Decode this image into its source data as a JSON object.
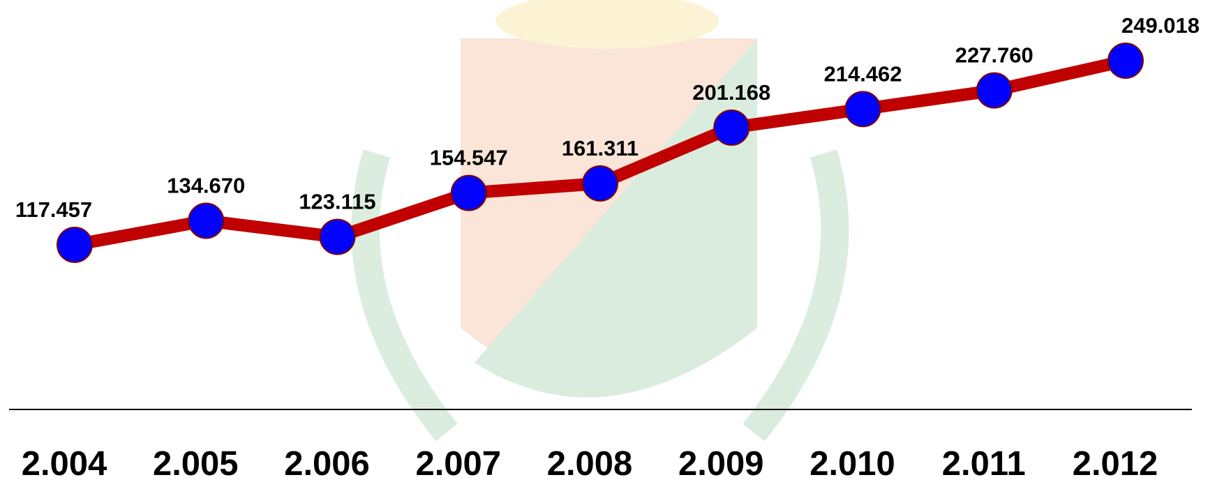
{
  "chart_data": {
    "type": "line",
    "categories": [
      "2.004",
      "2.005",
      "2.006",
      "2.007",
      "2.008",
      "2.009",
      "2.010",
      "2.011",
      "2.012"
    ],
    "values": [
      117457,
      134670,
      123115,
      154547,
      161311,
      201168,
      214462,
      227760,
      249018
    ],
    "value_labels": [
      "117.457",
      "134.670",
      "123.115",
      "154.547",
      "161.311",
      "201.168",
      "214.462",
      "227.760",
      "249.018"
    ],
    "color": "#c00000",
    "marker_color": "#0000ff"
  }
}
